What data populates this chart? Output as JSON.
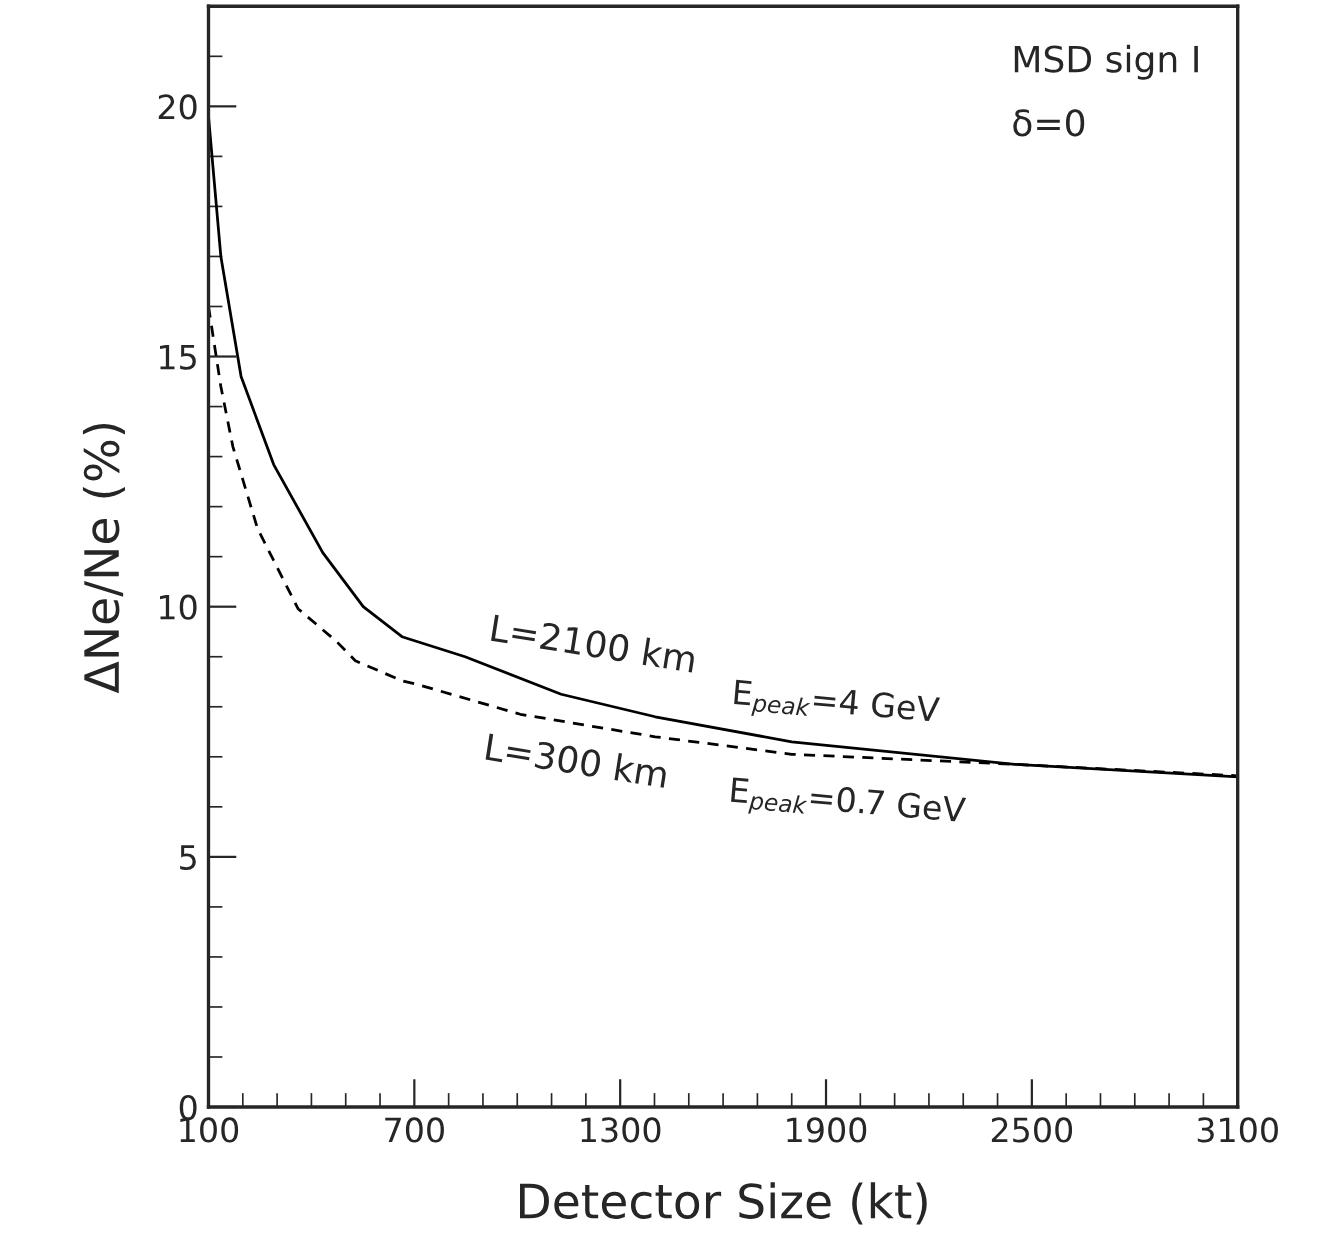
{
  "chart_data": {
    "type": "line",
    "xlabel": "Detector Size (kt)",
    "ylabel": "ΔNe/Ne (%)",
    "xlim": [
      100,
      3100
    ],
    "xticks": [
      100,
      700,
      1300,
      1900,
      2500,
      3100
    ],
    "ylim": [
      0,
      22
    ],
    "yticks": [
      0,
      5,
      10,
      15,
      20
    ],
    "grid": false,
    "legend": false,
    "marker": "none",
    "series": [
      {
        "name": "L=2100 km",
        "color": "#000000",
        "line_style": "solid",
        "x": [
          100,
          136,
          195,
          290,
          433,
          551,
          664,
          848,
          1128,
          1402,
          1800,
          2450,
          3100
        ],
        "values": [
          19.8,
          17.0,
          14.6,
          12.84,
          11.08,
          10.0,
          9.4,
          9.0,
          8.25,
          7.8,
          7.3,
          6.85,
          6.6
        ]
      },
      {
        "name": "L=300 km",
        "color": "#000000",
        "line_style": "dashed",
        "x": [
          100,
          136,
          171,
          243,
          361,
          474,
          528,
          664,
          712,
          1009,
          1402,
          1800,
          2450,
          3100
        ],
        "values": [
          16.0,
          14.4,
          13.2,
          11.56,
          9.96,
          9.3,
          8.92,
          8.52,
          8.44,
          7.85,
          7.4,
          7.05,
          6.85,
          6.62
        ]
      }
    ],
    "annotations": [
      {
        "text": "E$_{peak}$=4 GeV",
        "x": 1900,
        "y": 7.3
      },
      {
        "text": "E$_{peak}$=0.7 GeV",
        "x": 1900,
        "y": 7.05
      },
      "MSD sign I",
      "δ=0"
    ]
  }
}
